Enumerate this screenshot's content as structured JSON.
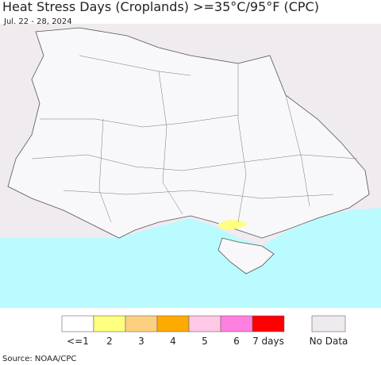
{
  "header": {
    "title": "Heat Stress Days (Croplands) >=35°C/95°F (CPC)",
    "date": "Jul. 22 - 28, 2024"
  },
  "legend": {
    "items": [
      {
        "label": "<=1",
        "color": "#ffffff"
      },
      {
        "label": "2",
        "color": "#ffff80"
      },
      {
        "label": "3",
        "color": "#fdd080"
      },
      {
        "label": "4",
        "color": "#ffaa00"
      },
      {
        "label": "5",
        "color": "#ffc8e6"
      },
      {
        "label": "6",
        "color": "#ff80e0"
      },
      {
        "label": "7 days",
        "color": "#ff0000"
      }
    ],
    "no_data": {
      "label": "No Data",
      "color": "#eeeaee"
    }
  },
  "footer": {
    "source": "Source: NOAA/CPC"
  }
}
